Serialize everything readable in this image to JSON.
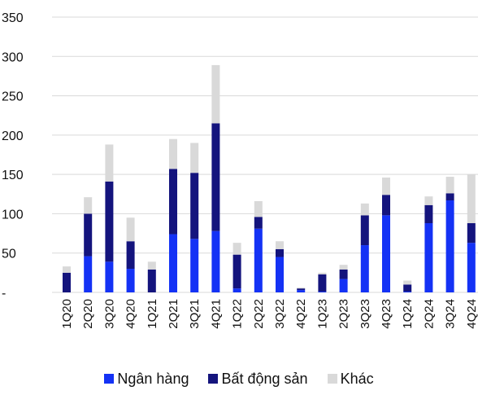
{
  "chart_data": {
    "type": "bar",
    "stacked": true,
    "title": "",
    "xlabel": "",
    "ylabel": "",
    "ylim": [
      0,
      350
    ],
    "yticks": [
      0,
      50,
      100,
      150,
      200,
      250,
      300,
      350
    ],
    "ytick_labels": [
      "-",
      "50",
      "100",
      "150",
      "200",
      "250",
      "300",
      "350"
    ],
    "grid": true,
    "legend_position": "bottom",
    "categories": [
      "1Q20",
      "2Q20",
      "3Q20",
      "4Q20",
      "1Q21",
      "2Q21",
      "3Q21",
      "4Q21",
      "1Q22",
      "2Q22",
      "3Q22",
      "4Q22",
      "1Q23",
      "2Q23",
      "3Q23",
      "4Q23",
      "1Q24",
      "2Q24",
      "3Q24",
      "4Q24"
    ],
    "series": [
      {
        "name": "Ngân hàng",
        "color": "#1432f5",
        "values": [
          0,
          46,
          39,
          30,
          0,
          74,
          68,
          78,
          5,
          81,
          45,
          3,
          1,
          17,
          60,
          98,
          1,
          88,
          117,
          63
        ]
      },
      {
        "name": "Bất động sản",
        "color": "#14147d",
        "values": [
          25,
          54,
          102,
          35,
          29,
          83,
          84,
          137,
          43,
          15,
          10,
          2,
          22,
          12,
          38,
          26,
          9,
          23,
          9,
          25
        ]
      },
      {
        "name": "Khác",
        "color": "#d9d9d9",
        "values": [
          8,
          21,
          47,
          30,
          10,
          38,
          38,
          74,
          15,
          20,
          10,
          1,
          2,
          6,
          15,
          22,
          5,
          11,
          21,
          62
        ]
      }
    ]
  }
}
